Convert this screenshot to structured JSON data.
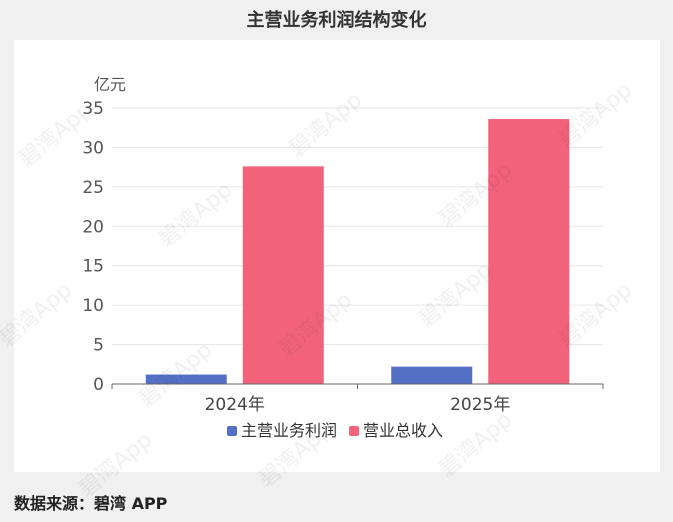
{
  "title": "主营业务利润结构变化",
  "source": "数据来源：碧湾 APP",
  "watermark": "碧湾App",
  "chart_data": {
    "type": "bar",
    "unit_label": "亿元",
    "categories": [
      "2024年",
      "2025年"
    ],
    "series": [
      {
        "name": "主营业务利润",
        "values": [
          1.2,
          2.2
        ],
        "color": "#5470c6"
      },
      {
        "name": "营业总收入",
        "values": [
          27.6,
          33.6
        ],
        "color": "#f2637b"
      }
    ],
    "ylim": [
      0,
      35
    ],
    "yticks": [
      0,
      5,
      10,
      15,
      20,
      25,
      30,
      35
    ],
    "grid": true,
    "legend_position": "bottom"
  }
}
